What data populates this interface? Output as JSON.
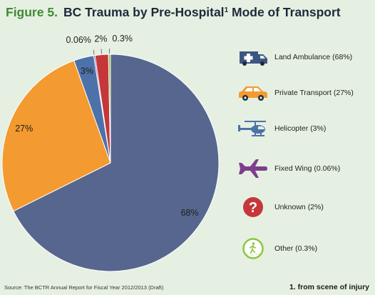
{
  "figure": {
    "label": "Figure 5.",
    "title_main": "BC Trauma by Pre-Hospital",
    "title_sup": "1",
    "title_rest": " Mode of Transport"
  },
  "chart_data": {
    "type": "pie",
    "title": "BC Trauma by Pre-Hospital Mode of Transport",
    "start_direction": "clockwise from 12 o'clock",
    "slices": [
      {
        "name": "Land Ambulance",
        "value": 68,
        "label": "68%",
        "color": "#56668f"
      },
      {
        "name": "Private Transport",
        "value": 27,
        "label": "27%",
        "color": "#f39a30"
      },
      {
        "name": "Helicopter",
        "value": 3,
        "label": "3%",
        "color": "#4d71a9"
      },
      {
        "name": "Fixed Wing",
        "value": 0.06,
        "label": "0.06%",
        "color": "#7d3f8c"
      },
      {
        "name": "Unknown",
        "value": 2,
        "label": "2%",
        "color": "#c5373a"
      },
      {
        "name": "Other",
        "value": 0.3,
        "label": "0.3%",
        "color": "#8cc63f"
      }
    ]
  },
  "legend": [
    {
      "label": "Land Ambulance (68%)",
      "icon": "ambulance-icon",
      "color": "#3c5683"
    },
    {
      "label": "Private Transport (27%)",
      "icon": "car-icon",
      "color": "#f39a30"
    },
    {
      "label": "Helicopter (3%)",
      "icon": "helicopter-icon",
      "color": "#4d71a9"
    },
    {
      "label": "Fixed Wing (0.06%)",
      "icon": "airplane-icon",
      "color": "#7d3f8c"
    },
    {
      "label": "Unknown (2%)",
      "icon": "question-icon",
      "color": "#c5373a"
    },
    {
      "label": "Other (0.3%)",
      "icon": "walking-person-icon",
      "color": "#8cc63f"
    }
  ],
  "source": "Source: The BCTR Annual Report for Fiscal Year 2012/2013 (Draft)",
  "footnote": "1. from scene of injury"
}
